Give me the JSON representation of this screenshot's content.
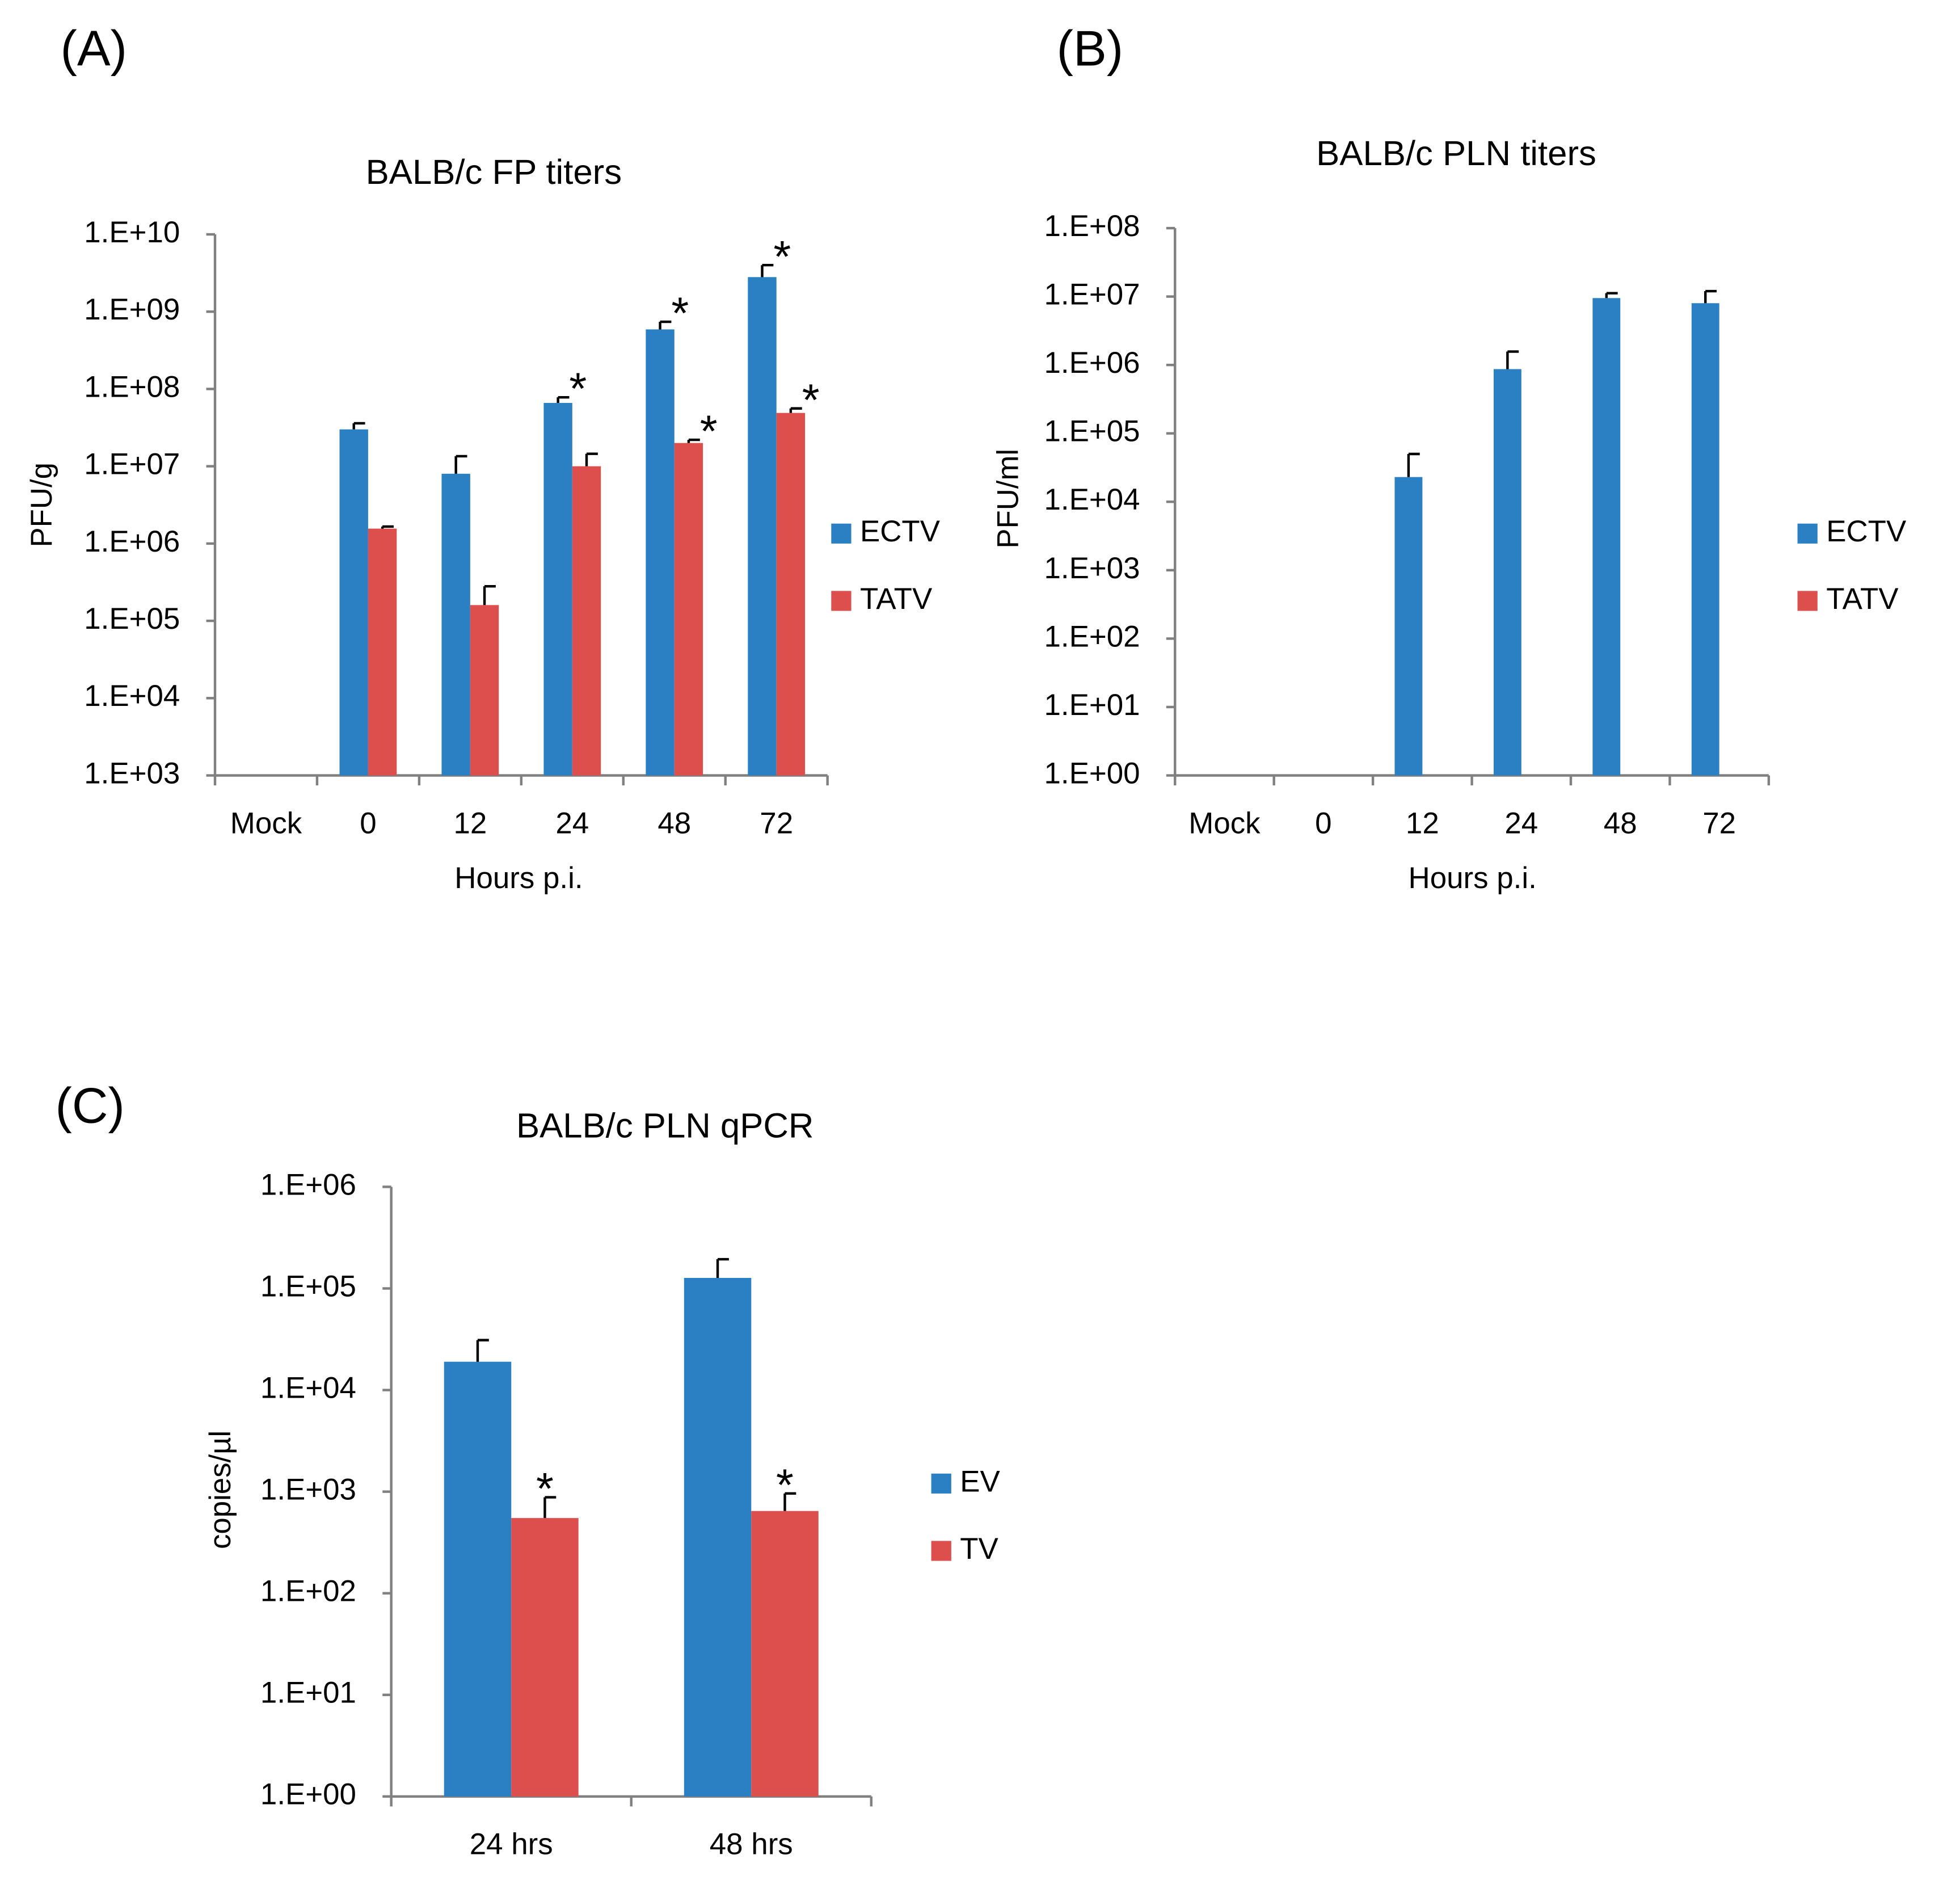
{
  "chart_data": [
    {
      "type": "bar",
      "panel_label": "(A)",
      "title": "BALB/c FP titers",
      "xlabel": "Hours p.i.",
      "ylabel": "PFU/g",
      "yscale": "log",
      "grid": false,
      "legend": "right",
      "categories": [
        "Mock",
        "0",
        "12",
        "24",
        "48",
        "72"
      ],
      "series": [
        {
          "name": "ECTV",
          "color": "#2b80c3",
          "values": [
            null,
            30000000,
            8000000,
            66000000,
            590000000,
            2800000000
          ],
          "errors": [
            null,
            6000000,
            5500000,
            12000000,
            150000000,
            1200000000
          ],
          "markers": [
            null,
            null,
            null,
            "*",
            "*",
            "*"
          ]
        },
        {
          "name": "TATV",
          "color": "#dd4f4d",
          "values": [
            null,
            1560000,
            160000,
            10000000,
            20000000,
            49000000
          ],
          "errors": [
            null,
            100000,
            120000,
            4500000,
            2000000,
            7000000
          ],
          "markers": [
            null,
            null,
            null,
            null,
            "*",
            "*"
          ]
        }
      ],
      "ylim": [
        1000,
        10000000000
      ],
      "yticks": [
        {
          "value": 1000,
          "label": "1.E+03"
        },
        {
          "value": 10000,
          "label": "1.E+04"
        },
        {
          "value": 100000,
          "label": "1.E+05"
        },
        {
          "value": 1000000,
          "label": "1.E+06"
        },
        {
          "value": 10000000,
          "label": "1.E+07"
        },
        {
          "value": 100000000,
          "label": "1.E+08"
        },
        {
          "value": 1000000000,
          "label": "1.E+09"
        },
        {
          "value": 10000000000,
          "label": "1.E+10"
        }
      ]
    },
    {
      "type": "bar",
      "panel_label": "(B)",
      "title": "BALB/c PLN titers",
      "xlabel": "Hours p.i.",
      "ylabel": "PFU/ml",
      "yscale": "log",
      "grid": false,
      "legend": "right",
      "categories": [
        "Mock",
        "0",
        "12",
        "24",
        "48",
        "72"
      ],
      "series": [
        {
          "name": "ECTV",
          "color": "#2b80c3",
          "values": [
            null,
            null,
            23000,
            870000,
            9500000,
            8000000
          ],
          "errors": [
            null,
            null,
            27000,
            700000,
            1700000,
            4000000
          ]
        },
        {
          "name": "TATV",
          "color": "#dd4f4d",
          "values": [
            null,
            null,
            null,
            null,
            null,
            null
          ]
        }
      ],
      "ylim": [
        1,
        100000000
      ],
      "yticks": [
        {
          "value": 1,
          "label": "1.E+00"
        },
        {
          "value": 10,
          "label": "1.E+01"
        },
        {
          "value": 100,
          "label": "1.E+02"
        },
        {
          "value": 1000,
          "label": "1.E+03"
        },
        {
          "value": 10000,
          "label": "1.E+04"
        },
        {
          "value": 100000,
          "label": "1.E+05"
        },
        {
          "value": 1000000,
          "label": "1.E+06"
        },
        {
          "value": 10000000,
          "label": "1.E+07"
        },
        {
          "value": 100000000,
          "label": "1.E+08"
        }
      ]
    },
    {
      "type": "bar",
      "panel_label": "(C)",
      "title": "BALB/c PLN qPCR",
      "ylabel": "copies/µl",
      "yscale": "log",
      "grid": false,
      "legend": "right",
      "categories": [
        "24 hrs",
        "48 hrs"
      ],
      "series": [
        {
          "name": "EV",
          "color": "#2b80c3",
          "values": [
            19000,
            127000
          ],
          "errors": [
            12000,
            67000
          ]
        },
        {
          "name": "TV",
          "color": "#dd4f4d",
          "values": [
            550,
            645
          ],
          "errors": [
            330,
            315
          ],
          "markers": [
            "*",
            "*"
          ]
        }
      ],
      "ylim": [
        1,
        1000000
      ],
      "yticks": [
        {
          "value": 1,
          "label": "1.E+00"
        },
        {
          "value": 10,
          "label": "1.E+01"
        },
        {
          "value": 100,
          "label": "1.E+02"
        },
        {
          "value": 1000,
          "label": "1.E+03"
        },
        {
          "value": 10000,
          "label": "1.E+04"
        },
        {
          "value": 100000,
          "label": "1.E+05"
        },
        {
          "value": 1000000,
          "label": "1.E+06"
        }
      ]
    }
  ]
}
